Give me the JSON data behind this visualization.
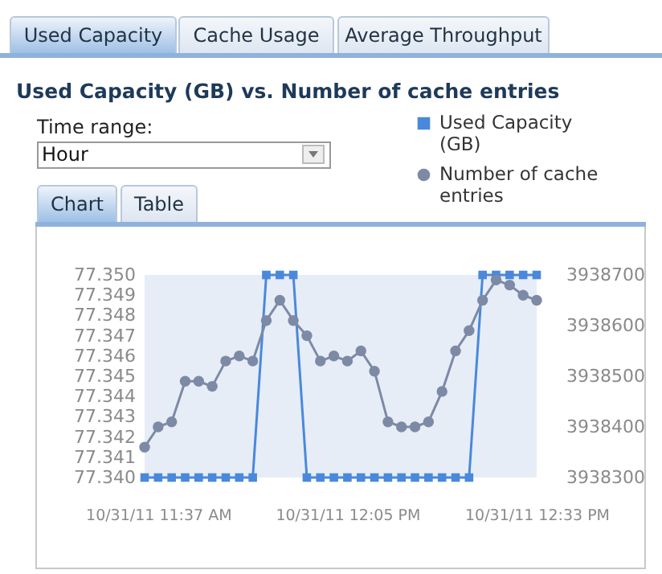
{
  "chart_data": {
    "type": "line",
    "title": "Used Capacity (GB) vs. Number of cache entries",
    "annotations": [
      "Used Capacity",
      "Cache Usage",
      "Average Throughput",
      "Time range:",
      "Hour",
      "Chart",
      "Table"
    ],
    "x": [
      "--10-31T11:35",
      "--10-31T11:37",
      "--10-31T11:39",
      "--10-31T11:41",
      "--10-31T11:43",
      "--10-31T11:45",
      "--10-31T11:47",
      "--10-31T11:49",
      "--10-31T11:51",
      "--10-31T11:53",
      "--10-31T11:55",
      "--10-31T11:57",
      "--10-31T11:59",
      "--10-31T12:01",
      "--10-31T12:03",
      "--10-31T12:05",
      "--10-31T12:07",
      "--10-31T12:09",
      "--10-31T12:11",
      "--10-31T12:13",
      "--10-31T12:15",
      "--10-31T12:17",
      "--10-31T12:19",
      "--10-31T12:21",
      "--10-31T12:23",
      "--10-31T12:25",
      "--10-31T12:27",
      "--10-31T12:29",
      "--10-31T12:31",
      "--10-31T12:33"
    ],
    "series": [
      {
        "name": "Used Capacity (GB)",
        "color": "#4a88dc",
        "marker": "square",
        "values": [
          77.34,
          77.34,
          77.34,
          77.34,
          77.34,
          77.34,
          77.34,
          77.34,
          77.34,
          77.35,
          77.35,
          77.35,
          77.34,
          77.34,
          77.34,
          77.34,
          77.34,
          77.34,
          77.34,
          77.34,
          77.34,
          77.34,
          77.34,
          77.34,
          77.34,
          77.35,
          77.35,
          77.35,
          77.35,
          77.35
        ]
      },
      {
        "name": "Number of cache entries",
        "color": "#7d8aa5",
        "marker": "circle",
        "axis": "y2",
        "values": [
          3938360,
          3938400,
          3938410,
          3938490,
          3938490,
          3938480,
          3938530,
          3938540,
          3938530,
          3938610,
          3938650,
          3938610,
          3938580,
          3938530,
          3938540,
          3938530,
          3938550,
          3938510,
          3938410,
          3938400,
          3938400,
          3938410,
          3938470,
          3938550,
          3938590,
          3938650,
          3938690,
          3938680,
          3938660,
          3938650
        ]
      }
    ],
    "xlim": [
      "--10-31T11:35",
      "--10-31T12:33"
    ],
    "xticks": [
      {
        "value": "--10-31T11:37",
        "label": "10/31/11 11:37 AM"
      },
      {
        "value": "--10-31T12:05",
        "label": "10/31/11 12:05 PM"
      },
      {
        "value": "--10-31T12:33",
        "label": "10/31/11 12:33 PM"
      }
    ],
    "ylim": [
      77.34,
      77.35
    ],
    "yticks": [
      {
        "value": 77.34,
        "label": "77.340"
      },
      {
        "value": 77.341,
        "label": "77.341"
      },
      {
        "value": 77.342,
        "label": "77.342"
      },
      {
        "value": 77.343,
        "label": "77.343"
      },
      {
        "value": 77.344,
        "label": "77.344"
      },
      {
        "value": 77.345,
        "label": "77.345"
      },
      {
        "value": 77.346,
        "label": "77.346"
      },
      {
        "value": 77.347,
        "label": "77.347"
      },
      {
        "value": 77.348,
        "label": "77.348"
      },
      {
        "value": 77.349,
        "label": "77.349"
      },
      {
        "value": 77.35,
        "label": "77.350"
      }
    ],
    "y2lim": [
      3938300,
      3938700
    ],
    "y2ticks": [
      3938300,
      3938400,
      3938500,
      3938600,
      3938700
    ],
    "legend": "top right"
  }
}
